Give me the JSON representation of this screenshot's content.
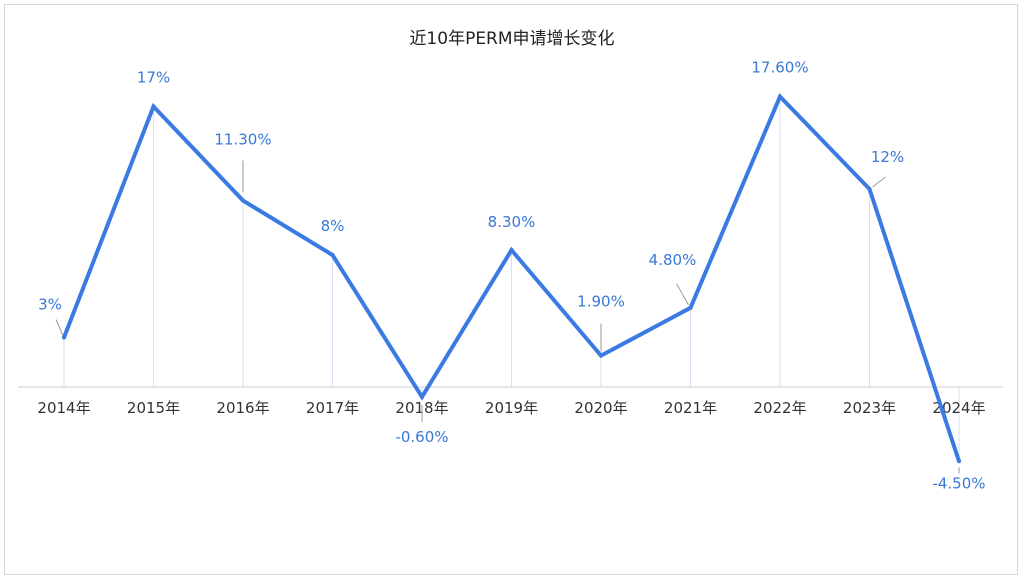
{
  "chart_data": {
    "type": "line",
    "title": "近10年PERM申请增长变化",
    "categories": [
      "2014年",
      "2015年",
      "2016年",
      "2017年",
      "2018年",
      "2019年",
      "2020年",
      "2021年",
      "2022年",
      "2023年",
      "2024年"
    ],
    "values": [
      3,
      17,
      11.3,
      8,
      -0.6,
      8.3,
      1.9,
      4.8,
      17.6,
      12,
      -4.5
    ],
    "data_labels": [
      "3%",
      "17%",
      "11.30%",
      "8%",
      "-0.60%",
      "8.30%",
      "1.90%",
      "4.80%",
      "17.60%",
      "12%",
      "-4.50%"
    ],
    "xlabel": "",
    "ylabel": "",
    "grid": false,
    "legend": "none",
    "line_color": "#3b7ae3",
    "label_color": "#3a78d8",
    "axis_color": "#cccccc",
    "drop_line_color": "#d5e2f7"
  }
}
